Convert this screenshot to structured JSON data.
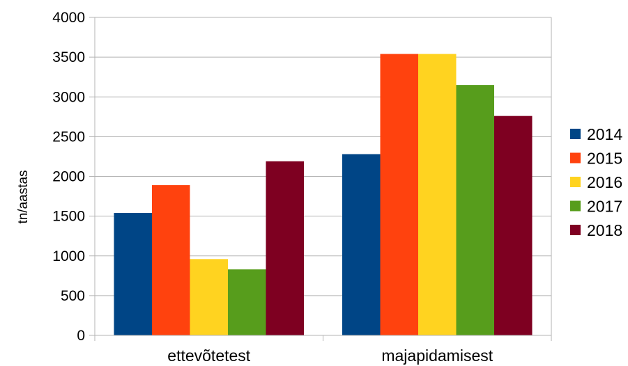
{
  "chart_data": {
    "type": "bar",
    "categories": [
      "ettevõtetest",
      "majapidamisest"
    ],
    "series": [
      {
        "name": "2014",
        "color": "#004586",
        "values": [
          1540,
          2280
        ]
      },
      {
        "name": "2015",
        "color": "#ff420e",
        "values": [
          1890,
          3540
        ]
      },
      {
        "name": "2016",
        "color": "#ffd320",
        "values": [
          960,
          3540
        ]
      },
      {
        "name": "2017",
        "color": "#579d1c",
        "values": [
          830,
          3150
        ]
      },
      {
        "name": "2018",
        "color": "#7e0021",
        "values": [
          2190,
          2760
        ]
      }
    ],
    "ylabel": "tn/aastas",
    "ylim": [
      0,
      4000
    ],
    "yticks": [
      "0",
      "500",
      "1000",
      "1500",
      "2000",
      "2500",
      "3000",
      "3500",
      "4000"
    ],
    "grid": true,
    "legend_position": "right"
  }
}
